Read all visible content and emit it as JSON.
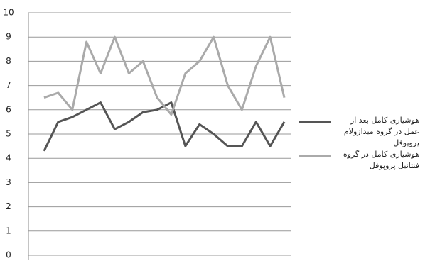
{
  "chart_data": {
    "type": "line",
    "categories": [
      null,
      null,
      null,
      null,
      null,
      null,
      null,
      null,
      null,
      null,
      null,
      null,
      null,
      null,
      null,
      null,
      null,
      null
    ],
    "series": [
      {
        "name": "هوشیاری کامل بعد از عمل در گروه میدازولام پروپوفل",
        "color": "#555555",
        "values": [
          4.3,
          5.5,
          5.7,
          6.0,
          6.3,
          5.2,
          5.5,
          5.9,
          6.0,
          6.3,
          4.5,
          5.4,
          5.0,
          4.5,
          4.5,
          5.5,
          4.5,
          5.5
        ]
      },
      {
        "name": "هوشیاری کامل در گروه فنتانیل پروپوفل",
        "color": "#aaaaaa",
        "values": [
          6.5,
          6.7,
          6.0,
          8.8,
          7.5,
          9.0,
          7.5,
          8.0,
          6.5,
          5.8,
          7.5,
          8.0,
          9.0,
          7.0,
          6.0,
          7.8,
          9.0,
          6.5
        ]
      }
    ],
    "ylim": [
      0,
      10
    ],
    "yticks": [
      0,
      1,
      2,
      3,
      4,
      5,
      6,
      7,
      8,
      9,
      10
    ],
    "grid": true,
    "legend": "right"
  }
}
